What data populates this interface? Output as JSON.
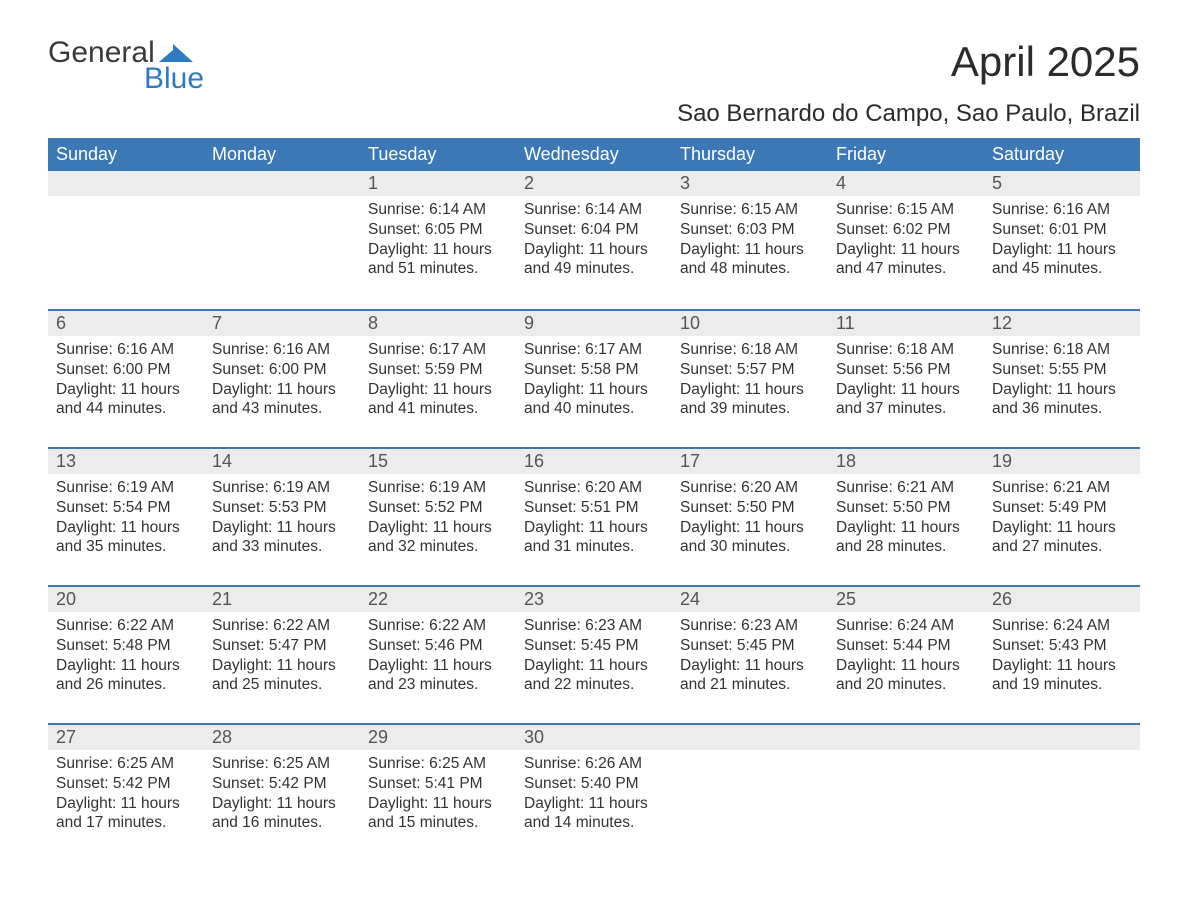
{
  "brand": {
    "word1": "General",
    "word2": "Blue",
    "mark_color": "#2f7ac0",
    "fg": "#3a3a3a"
  },
  "title": "April 2025",
  "subtitle": "Sao Bernardo do Campo, Sao Paulo, Brazil",
  "colors": {
    "header_bg": "#3b78b5",
    "header_fg": "#ffffff",
    "daynum_bg": "#ececec",
    "week_border": "#3b78b5",
    "body_bg": "#ffffff",
    "text": "#333333"
  },
  "weekdays": [
    "Sunday",
    "Monday",
    "Tuesday",
    "Wednesday",
    "Thursday",
    "Friday",
    "Saturday"
  ],
  "weeks": [
    [
      null,
      null,
      {
        "n": "1",
        "sr": "6:14 AM",
        "ss": "6:05 PM",
        "dl": "11 hours and 51 minutes."
      },
      {
        "n": "2",
        "sr": "6:14 AM",
        "ss": "6:04 PM",
        "dl": "11 hours and 49 minutes."
      },
      {
        "n": "3",
        "sr": "6:15 AM",
        "ss": "6:03 PM",
        "dl": "11 hours and 48 minutes."
      },
      {
        "n": "4",
        "sr": "6:15 AM",
        "ss": "6:02 PM",
        "dl": "11 hours and 47 minutes."
      },
      {
        "n": "5",
        "sr": "6:16 AM",
        "ss": "6:01 PM",
        "dl": "11 hours and 45 minutes."
      }
    ],
    [
      {
        "n": "6",
        "sr": "6:16 AM",
        "ss": "6:00 PM",
        "dl": "11 hours and 44 minutes."
      },
      {
        "n": "7",
        "sr": "6:16 AM",
        "ss": "6:00 PM",
        "dl": "11 hours and 43 minutes."
      },
      {
        "n": "8",
        "sr": "6:17 AM",
        "ss": "5:59 PM",
        "dl": "11 hours and 41 minutes."
      },
      {
        "n": "9",
        "sr": "6:17 AM",
        "ss": "5:58 PM",
        "dl": "11 hours and 40 minutes."
      },
      {
        "n": "10",
        "sr": "6:18 AM",
        "ss": "5:57 PM",
        "dl": "11 hours and 39 minutes."
      },
      {
        "n": "11",
        "sr": "6:18 AM",
        "ss": "5:56 PM",
        "dl": "11 hours and 37 minutes."
      },
      {
        "n": "12",
        "sr": "6:18 AM",
        "ss": "5:55 PM",
        "dl": "11 hours and 36 minutes."
      }
    ],
    [
      {
        "n": "13",
        "sr": "6:19 AM",
        "ss": "5:54 PM",
        "dl": "11 hours and 35 minutes."
      },
      {
        "n": "14",
        "sr": "6:19 AM",
        "ss": "5:53 PM",
        "dl": "11 hours and 33 minutes."
      },
      {
        "n": "15",
        "sr": "6:19 AM",
        "ss": "5:52 PM",
        "dl": "11 hours and 32 minutes."
      },
      {
        "n": "16",
        "sr": "6:20 AM",
        "ss": "5:51 PM",
        "dl": "11 hours and 31 minutes."
      },
      {
        "n": "17",
        "sr": "6:20 AM",
        "ss": "5:50 PM",
        "dl": "11 hours and 30 minutes."
      },
      {
        "n": "18",
        "sr": "6:21 AM",
        "ss": "5:50 PM",
        "dl": "11 hours and 28 minutes."
      },
      {
        "n": "19",
        "sr": "6:21 AM",
        "ss": "5:49 PM",
        "dl": "11 hours and 27 minutes."
      }
    ],
    [
      {
        "n": "20",
        "sr": "6:22 AM",
        "ss": "5:48 PM",
        "dl": "11 hours and 26 minutes."
      },
      {
        "n": "21",
        "sr": "6:22 AM",
        "ss": "5:47 PM",
        "dl": "11 hours and 25 minutes."
      },
      {
        "n": "22",
        "sr": "6:22 AM",
        "ss": "5:46 PM",
        "dl": "11 hours and 23 minutes."
      },
      {
        "n": "23",
        "sr": "6:23 AM",
        "ss": "5:45 PM",
        "dl": "11 hours and 22 minutes."
      },
      {
        "n": "24",
        "sr": "6:23 AM",
        "ss": "5:45 PM",
        "dl": "11 hours and 21 minutes."
      },
      {
        "n": "25",
        "sr": "6:24 AM",
        "ss": "5:44 PM",
        "dl": "11 hours and 20 minutes."
      },
      {
        "n": "26",
        "sr": "6:24 AM",
        "ss": "5:43 PM",
        "dl": "11 hours and 19 minutes."
      }
    ],
    [
      {
        "n": "27",
        "sr": "6:25 AM",
        "ss": "5:42 PM",
        "dl": "11 hours and 17 minutes."
      },
      {
        "n": "28",
        "sr": "6:25 AM",
        "ss": "5:42 PM",
        "dl": "11 hours and 16 minutes."
      },
      {
        "n": "29",
        "sr": "6:25 AM",
        "ss": "5:41 PM",
        "dl": "11 hours and 15 minutes."
      },
      {
        "n": "30",
        "sr": "6:26 AM",
        "ss": "5:40 PM",
        "dl": "11 hours and 14 minutes."
      },
      null,
      null,
      null
    ]
  ],
  "labels": {
    "sunrise": "Sunrise: ",
    "sunset": "Sunset: ",
    "daylight": "Daylight: "
  }
}
